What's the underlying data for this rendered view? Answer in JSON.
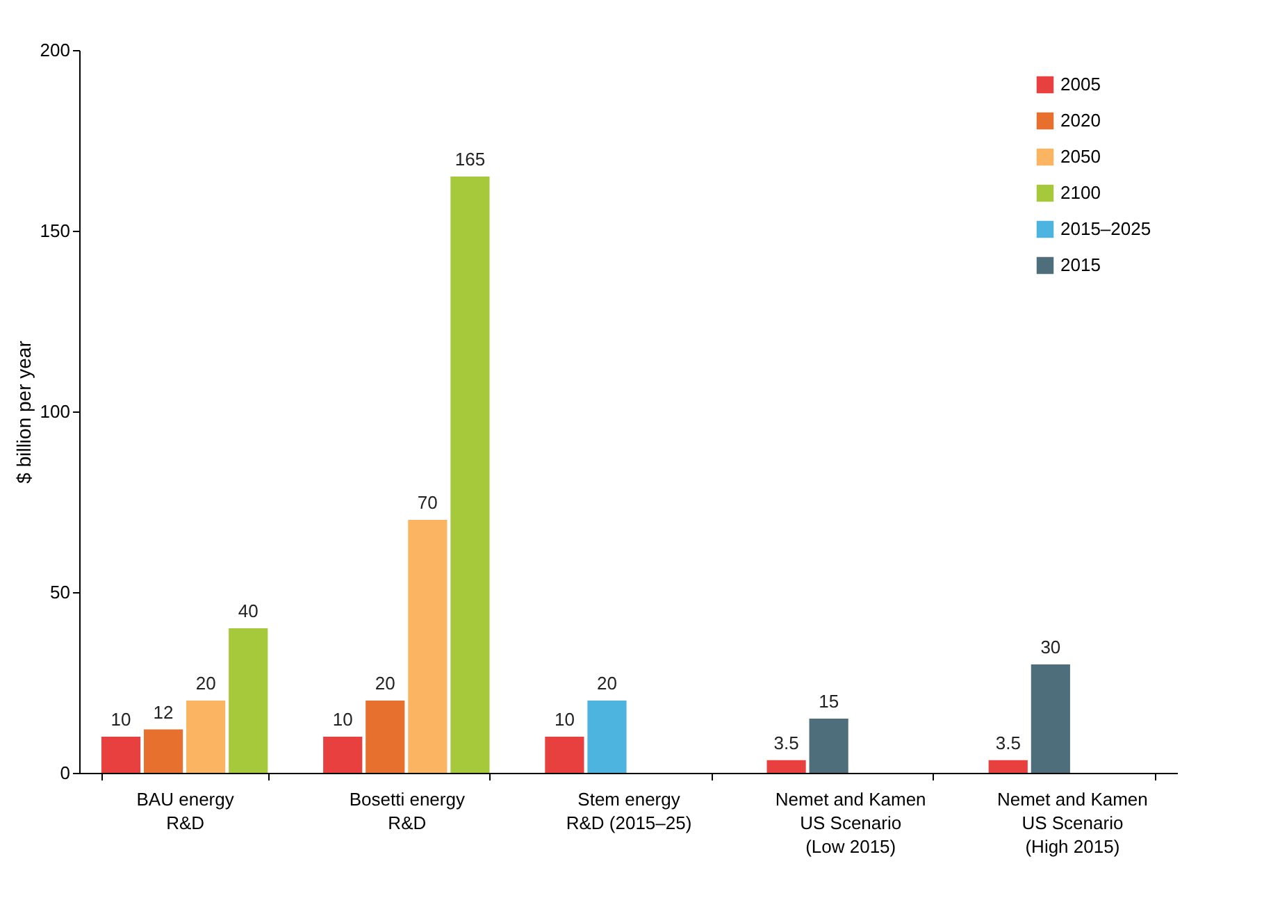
{
  "chart_data": {
    "type": "bar",
    "ylabel": "$ billion per year",
    "categories": [
      "BAU energy\nR&D",
      "Bosetti energy\nR&D",
      "Stem energy\nR&D (2015–25)",
      "Nemet and Kamen\nUS Scenario\n(Low 2015)",
      "Nemet and Kamen\nUS Scenario\n(High 2015)"
    ],
    "series": [
      {
        "name": "2005",
        "color": "#e8403f",
        "values": [
          10,
          10,
          10,
          3.5,
          3.5
        ]
      },
      {
        "name": "2020",
        "color": "#e8702e",
        "values": [
          12,
          20,
          null,
          null,
          null
        ]
      },
      {
        "name": "2050",
        "color": "#fbb562",
        "values": [
          20,
          70,
          null,
          null,
          null
        ]
      },
      {
        "name": "2100",
        "color": "#a5c93a",
        "values": [
          40,
          165,
          null,
          null,
          null
        ]
      },
      {
        "name": "2015–2025",
        "color": "#4db4e0",
        "values": [
          null,
          null,
          20,
          null,
          null
        ]
      },
      {
        "name": "2015",
        "color": "#4f6e7b",
        "values": [
          null,
          null,
          null,
          15,
          30
        ]
      }
    ],
    "ylim": [
      0,
      200
    ],
    "yticks": [
      0,
      50,
      100,
      150,
      200
    ],
    "grid": false,
    "legend": "top right",
    "data_labels": true
  }
}
